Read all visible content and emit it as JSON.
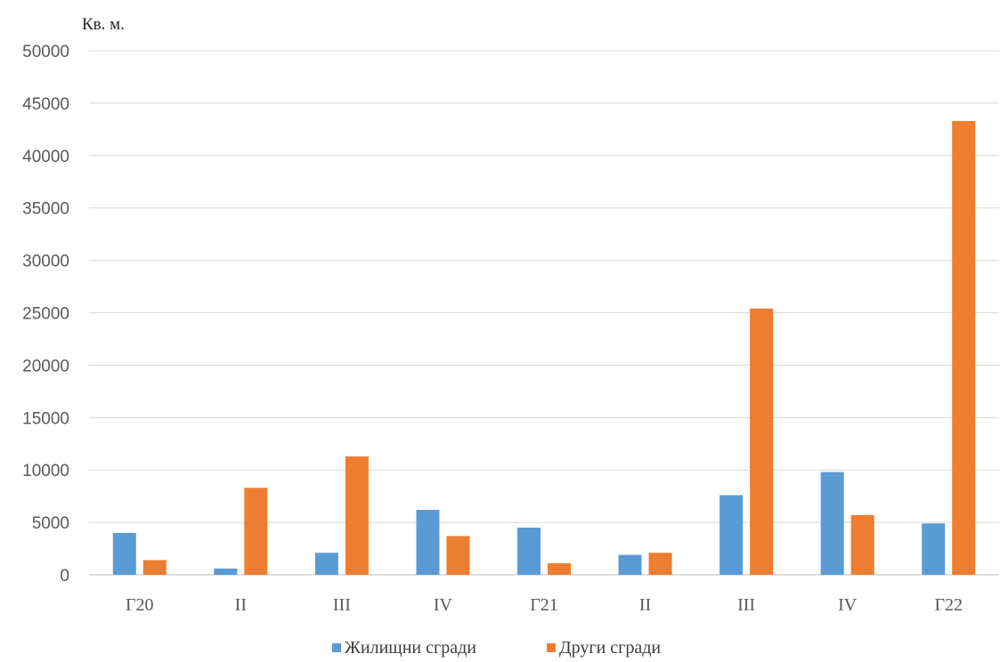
{
  "chart_data": {
    "type": "bar",
    "title": "",
    "ylabel": "Кв. м.",
    "xlabel": "",
    "categories": [
      "Г20",
      "II",
      "III",
      "IV",
      "Г21",
      "II",
      "III",
      "IV",
      "Г22"
    ],
    "ylim": [
      0,
      50000
    ],
    "yticks": [
      0,
      5000,
      10000,
      15000,
      20000,
      25000,
      30000,
      35000,
      40000,
      45000,
      50000
    ],
    "grid": true,
    "legend_position": "bottom",
    "series": [
      {
        "name": "Жилищни сгради",
        "color": "#5b9bd5",
        "values": [
          4000,
          600,
          2100,
          6200,
          4500,
          1900,
          7600,
          9800,
          4900
        ]
      },
      {
        "name": "Други сгради",
        "color": "#ed7d31",
        "values": [
          1400,
          8300,
          11300,
          3700,
          1100,
          2100,
          25400,
          5700,
          43300
        ]
      }
    ]
  }
}
